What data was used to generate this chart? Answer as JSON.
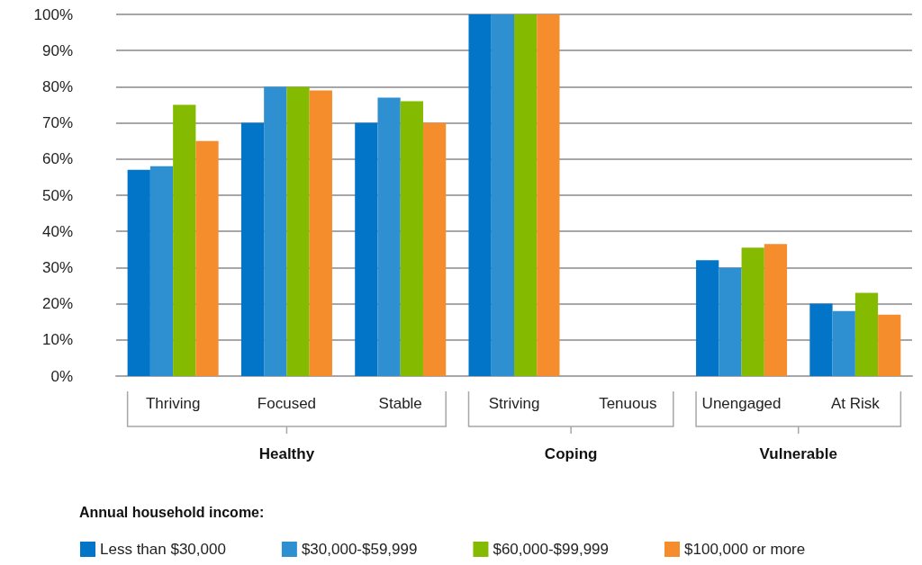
{
  "chart_data": {
    "type": "bar",
    "categories": [
      "Thriving",
      "Focused",
      "Stable",
      "Striving",
      "Tenuous",
      "Unengaged",
      "At Risk"
    ],
    "series": [
      {
        "name": "Less than $30,000",
        "color": "#0275c9",
        "values": [
          57,
          70,
          70,
          100,
          null,
          32,
          20
        ]
      },
      {
        "name": "$30,000-$59,999",
        "color": "#2f90d1",
        "values": [
          58,
          80,
          77,
          100,
          null,
          30,
          18
        ]
      },
      {
        "name": "$60,000-$99,999",
        "color": "#84bb00",
        "values": [
          75,
          80,
          76,
          100,
          null,
          35.5,
          23
        ]
      },
      {
        "name": "$100,000 or more",
        "color": "#f68d2d",
        "values": [
          65,
          79,
          70,
          100,
          null,
          36.5,
          17
        ]
      }
    ],
    "ylim": [
      0,
      100
    ],
    "yticks": [
      {
        "value": 0,
        "label": "0%"
      },
      {
        "value": 10,
        "label": "10%"
      },
      {
        "value": 20,
        "label": "20%"
      },
      {
        "value": 30,
        "label": "30%"
      },
      {
        "value": 40,
        "label": "40%"
      },
      {
        "value": 50,
        "label": "50%"
      },
      {
        "value": 60,
        "label": "60%"
      },
      {
        "value": 70,
        "label": "70%"
      },
      {
        "value": 80,
        "label": "80%"
      },
      {
        "value": 90,
        "label": "90%"
      },
      {
        "value": 100,
        "label": "100%"
      }
    ],
    "grid": "y",
    "legend": "bottom",
    "legend_title": "Annual household income:",
    "annotations": [
      "Healthy",
      "Coping",
      "Vulnerable"
    ]
  }
}
